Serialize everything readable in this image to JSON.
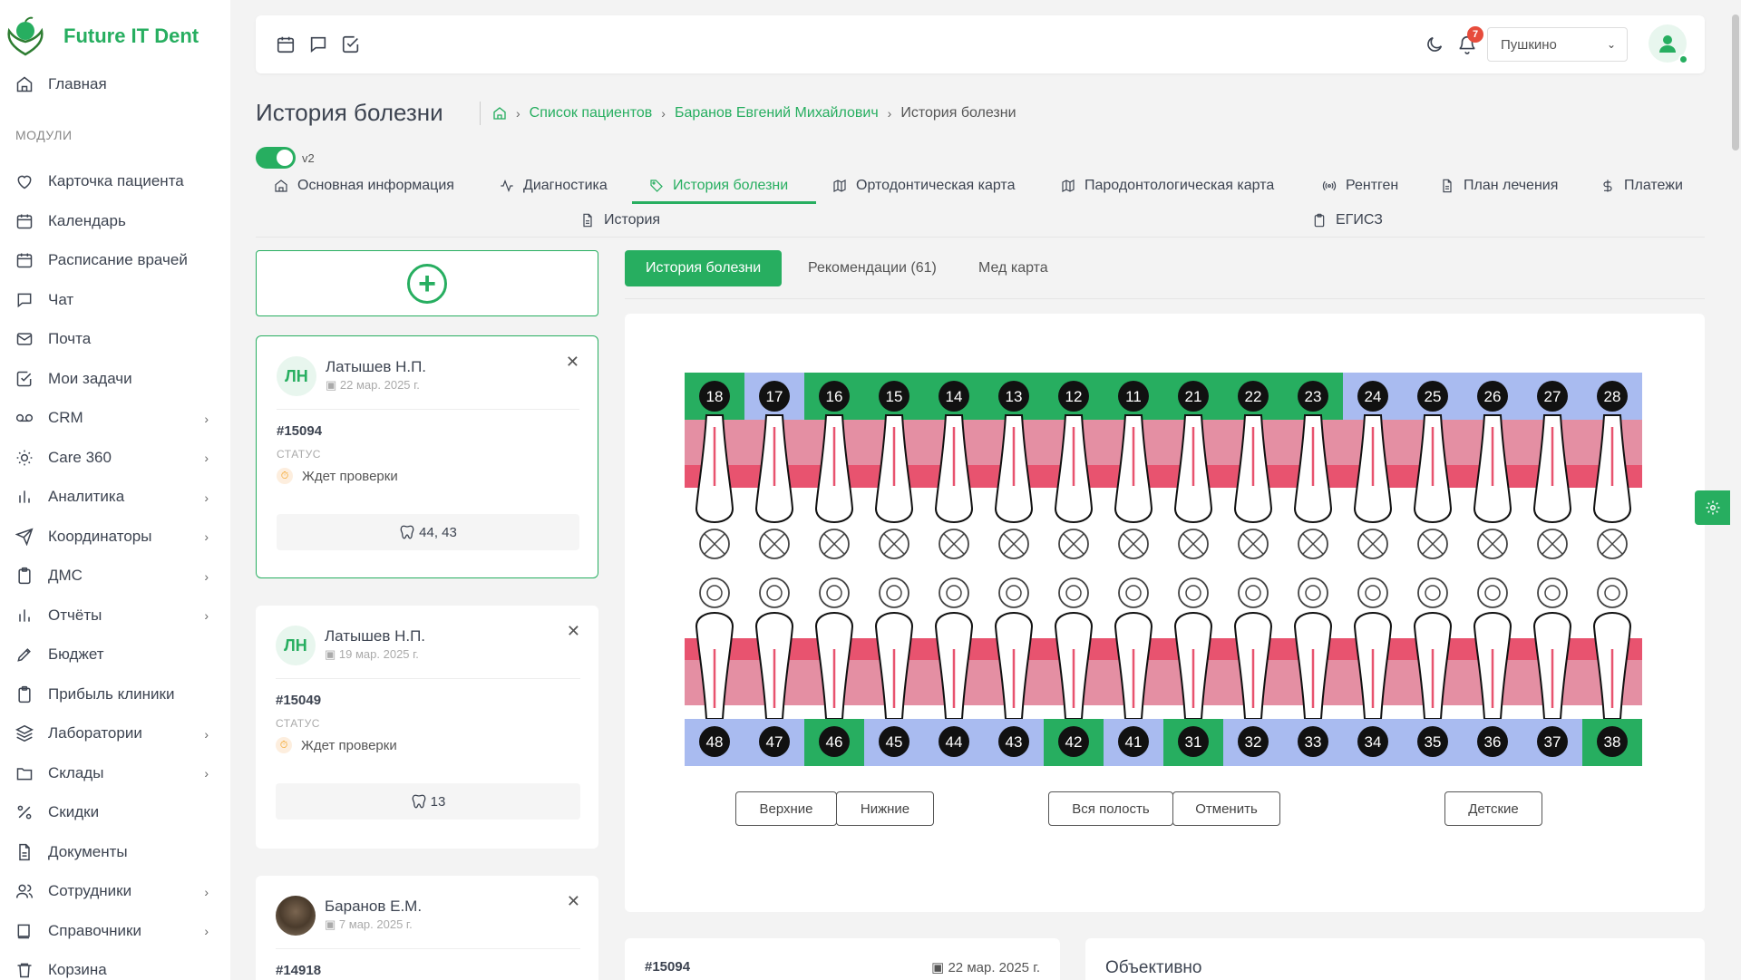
{
  "app": {
    "name": "Future IT Dent"
  },
  "sidebar": {
    "home": "Главная",
    "section": "МОДУЛИ",
    "items": [
      {
        "label": "Карточка пациента",
        "icon": "heart-icon"
      },
      {
        "label": "Календарь",
        "icon": "calendar-icon"
      },
      {
        "label": "Расписание врачей",
        "icon": "calendar-icon"
      },
      {
        "label": "Чат",
        "icon": "chat-icon"
      },
      {
        "label": "Почта",
        "icon": "mail-icon"
      },
      {
        "label": "Мои задачи",
        "icon": "checkbox-icon"
      },
      {
        "label": "CRM",
        "icon": "voicemail-icon",
        "chevron": true
      },
      {
        "label": "Care 360",
        "icon": "sun-icon",
        "chevron": true
      },
      {
        "label": "Аналитика",
        "icon": "bar-chart-icon",
        "chevron": true
      },
      {
        "label": "Координаторы",
        "icon": "send-icon",
        "chevron": true
      },
      {
        "label": "ДМС",
        "icon": "clipboard-icon",
        "chevron": true
      },
      {
        "label": "Отчёты",
        "icon": "bar-chart-icon",
        "chevron": true
      },
      {
        "label": "Бюджет",
        "icon": "pen-icon"
      },
      {
        "label": "Прибыль клиники",
        "icon": "clipboard-icon"
      },
      {
        "label": "Лаборатории",
        "icon": "layers-icon",
        "chevron": true
      },
      {
        "label": "Склады",
        "icon": "folder-icon",
        "chevron": true
      },
      {
        "label": "Скидки",
        "icon": "percent-icon"
      },
      {
        "label": "Документы",
        "icon": "document-icon"
      },
      {
        "label": "Сотрудники",
        "icon": "users-icon",
        "chevron": true
      },
      {
        "label": "Справочники",
        "icon": "book-icon",
        "chevron": true
      },
      {
        "label": "Корзина",
        "icon": "trash-icon"
      }
    ]
  },
  "topbar": {
    "notifications": "7",
    "city": "Пушкино"
  },
  "page": {
    "title": "История болезни",
    "breadcrumb": [
      "Список пациентов",
      "Баранов Евгений Михайлович",
      "История болезни"
    ],
    "toggle_label": "v2"
  },
  "tabs": [
    {
      "label": "Основная информация",
      "icon": "home-icon"
    },
    {
      "label": "Диагностика",
      "icon": "activity-icon"
    },
    {
      "label": "История болезни",
      "icon": "tooth-tag-icon",
      "active": true
    },
    {
      "label": "Ортодонтическая карта",
      "icon": "map-icon"
    },
    {
      "label": "Пародонтологическая карта",
      "icon": "map-icon"
    },
    {
      "label": "Рентген",
      "icon": "radio-icon"
    },
    {
      "label": "План лечения",
      "icon": "document-icon"
    },
    {
      "label": "Платежи",
      "icon": "dollar-icon"
    },
    {
      "label": "История",
      "icon": "document-icon"
    },
    {
      "label": "ЕГИСЗ",
      "icon": "clipboard-icon"
    }
  ],
  "visits": [
    {
      "initials": "ЛН",
      "name": "Латышев Н.П.",
      "date": "22 мар. 2025 г.",
      "id": "#15094",
      "status_label": "СТАТУС",
      "status": "Ждет проверки",
      "teeth": "44, 43"
    },
    {
      "initials": "ЛН",
      "name": "Латышев Н.П.",
      "date": "19 мар. 2025 г.",
      "id": "#15049",
      "status_label": "СТАТУС",
      "status": "Ждет проверки",
      "teeth": "13"
    },
    {
      "initials": "",
      "name": "Баранов Е.М.",
      "date": "7 мар. 2025 г.",
      "id": "#14918"
    }
  ],
  "subtabs": [
    "История болезни",
    "Рекомендации (61)",
    "Мед карта"
  ],
  "dental_chart": {
    "upper": [
      "18",
      "17",
      "16",
      "15",
      "14",
      "13",
      "12",
      "11",
      "21",
      "22",
      "23",
      "24",
      "25",
      "26",
      "27",
      "28"
    ],
    "lower": [
      "48",
      "47",
      "46",
      "45",
      "44",
      "43",
      "42",
      "41",
      "31",
      "32",
      "33",
      "34",
      "35",
      "36",
      "37",
      "38"
    ],
    "upper_status": [
      "green",
      "blue",
      "green",
      "green",
      "green",
      "green",
      "green",
      "green",
      "green",
      "green",
      "green",
      "blue",
      "blue",
      "blue",
      "blue",
      "blue"
    ],
    "lower_status": [
      "blue",
      "blue",
      "green",
      "blue",
      "blue",
      "blue",
      "green",
      "blue",
      "green",
      "blue",
      "blue",
      "blue",
      "blue",
      "blue",
      "blue",
      "green"
    ],
    "buttons": [
      "Верхние",
      "Нижние",
      "Вся полость",
      "Отменить",
      "Детские"
    ]
  },
  "bottom": {
    "id": "#15094",
    "date": "22 мар. 2025 г.",
    "section_title": "Объективно"
  },
  "colors": {
    "accent": "#27ae60",
    "blue": "#a9bbf0",
    "gum_light": "#e48fa3",
    "gum_dark": "#e8536f"
  }
}
